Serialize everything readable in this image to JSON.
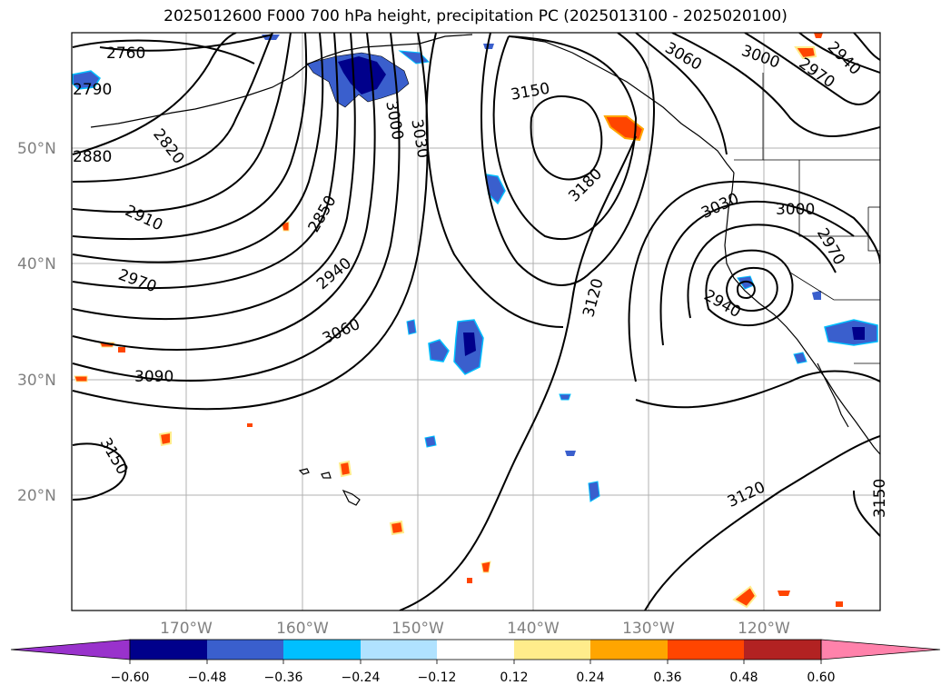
{
  "title": "2025012600 F000 700 hPa height, precipitation PC (2025013100 - 2025020100)",
  "lat_labels": [
    "50°N",
    "40°N",
    "30°N",
    "20°N"
  ],
  "lon_labels": [
    "170°W",
    "160°W",
    "150°W",
    "140°W",
    "130°W",
    "120°W"
  ],
  "contour_labels": [
    "2760",
    "2790",
    "2880",
    "2820",
    "2850",
    "2910",
    "2940",
    "2970",
    "3000",
    "3030",
    "3060",
    "3090",
    "3150",
    "3180",
    "3150",
    "3120",
    "3060",
    "3000",
    "2970",
    "2940",
    "3030",
    "3000",
    "2970",
    "2940",
    "3120",
    "3150"
  ],
  "colorbar": {
    "ticks": [
      "−0.60",
      "−0.48",
      "−0.36",
      "−0.24",
      "−0.12",
      "0.12",
      "0.24",
      "0.36",
      "0.48",
      "0.60"
    ],
    "colors": [
      "#9932cc",
      "#00008b",
      "#3a5fcd",
      "#00bfff",
      "#b0e2ff",
      "#ffffff",
      "#ffec8b",
      "#ffa500",
      "#ff4500",
      "#b22222",
      "#ff82ab"
    ]
  }
}
